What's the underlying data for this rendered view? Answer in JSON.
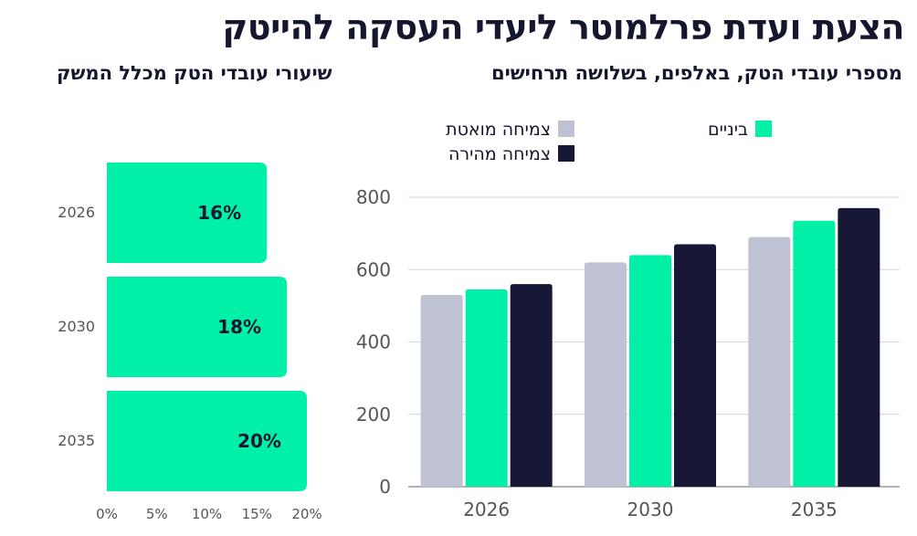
{
  "title": "הצעת ועדת פרלמוטר ליעדי העסקה להייטק",
  "colors": {
    "slow": "#bfc2d4",
    "mid": "#00f0a8",
    "fast": "#161836",
    "grid": "#d6d6d6",
    "axis": "#999999"
  },
  "chart_data": [
    {
      "type": "bar",
      "orientation": "horizontal",
      "title": "שיעורי עובדי הטק מכלל המשק",
      "categories": [
        "2026",
        "2030",
        "2035"
      ],
      "values": [
        16,
        18,
        20
      ],
      "value_labels": [
        "16%",
        "18%",
        "20%"
      ],
      "xlim": [
        0,
        20
      ],
      "x_ticks": [
        "0%",
        "5%",
        "10%",
        "15%",
        "20%"
      ],
      "x_tick_values": [
        0,
        5,
        10,
        15,
        20
      ],
      "grid": false
    },
    {
      "type": "bar",
      "title": "מספרי עובדי הטק, באלפים, בשלושה תרחישים",
      "categories": [
        "2026",
        "2030",
        "2035"
      ],
      "series": [
        {
          "name": "צמיחה מואטת",
          "color": "#bfc2d4",
          "values": [
            530,
            620,
            690
          ]
        },
        {
          "name": "ביניים",
          "color": "#00f0a8",
          "values": [
            545,
            640,
            735
          ]
        },
        {
          "name": "צמיחה מהירה",
          "color": "#161836",
          "values": [
            560,
            670,
            770
          ]
        }
      ],
      "ylim": [
        0,
        800
      ],
      "y_ticks": [
        "0",
        "200",
        "400",
        "600",
        "800"
      ],
      "y_tick_values": [
        0,
        200,
        400,
        600,
        800
      ],
      "grid": true,
      "legend_position": "top"
    }
  ]
}
